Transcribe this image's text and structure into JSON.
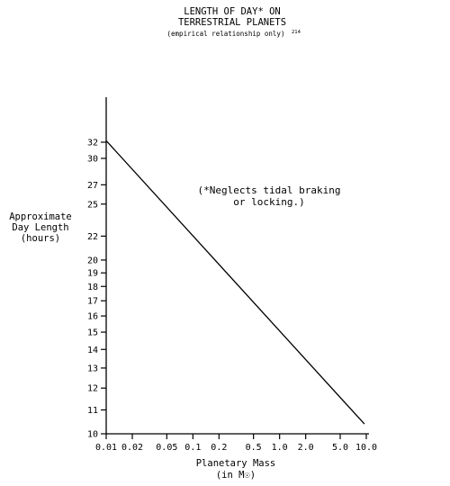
{
  "chart_data": {
    "type": "line",
    "title": [
      "LENGTH OF DAY* ON",
      "TERRESTRIAL PLANETS"
    ],
    "subtitle": "(empirical relationship only)",
    "subtitle_superscript": "214",
    "xlabel": [
      "Planetary Mass",
      "(in M☉)"
    ],
    "ylabel": [
      "Approximate",
      "Day Length",
      "(hours)"
    ],
    "x_scale": "log",
    "y_scale": "log",
    "xlim": [
      0.01,
      10.0
    ],
    "ylim": [
      10,
      40
    ],
    "x_ticks": [
      {
        "value": 0.01,
        "label": "0.01"
      },
      {
        "value": 0.02,
        "label": "0.02"
      },
      {
        "value": 0.05,
        "label": "0.05"
      },
      {
        "value": 0.1,
        "label": "0.1"
      },
      {
        "value": 0.2,
        "label": "0.2"
      },
      {
        "value": 0.5,
        "label": "0.5"
      },
      {
        "value": 1.0,
        "label": "1.0"
      },
      {
        "value": 2.0,
        "label": "2.0"
      },
      {
        "value": 5.0,
        "label": "5.0"
      },
      {
        "value": 10.0,
        "label": "10.0"
      }
    ],
    "y_ticks": [
      {
        "value": 10,
        "label": "10"
      },
      {
        "value": 11,
        "label": "11"
      },
      {
        "value": 12,
        "label": "12"
      },
      {
        "value": 13,
        "label": "13"
      },
      {
        "value": 14,
        "label": "14"
      },
      {
        "value": 15,
        "label": "15"
      },
      {
        "value": 16,
        "label": "16"
      },
      {
        "value": 17,
        "label": "17"
      },
      {
        "value": 18,
        "label": "18"
      },
      {
        "value": 19,
        "label": "19"
      },
      {
        "value": 20,
        "label": "20"
      },
      {
        "value": 22,
        "label": "22"
      },
      {
        "value": 25,
        "label": "25"
      },
      {
        "value": 27,
        "label": "27"
      },
      {
        "value": 30,
        "label": "30"
      },
      {
        "value": 32,
        "label": "32"
      }
    ],
    "series": [
      {
        "x": [
          0.01,
          9.5
        ],
        "y": [
          32.2,
          10.4
        ]
      }
    ],
    "annotation": [
      "(*Neglects tidal braking",
      "or locking.)"
    ],
    "grid": false,
    "line_color": "#000000"
  }
}
